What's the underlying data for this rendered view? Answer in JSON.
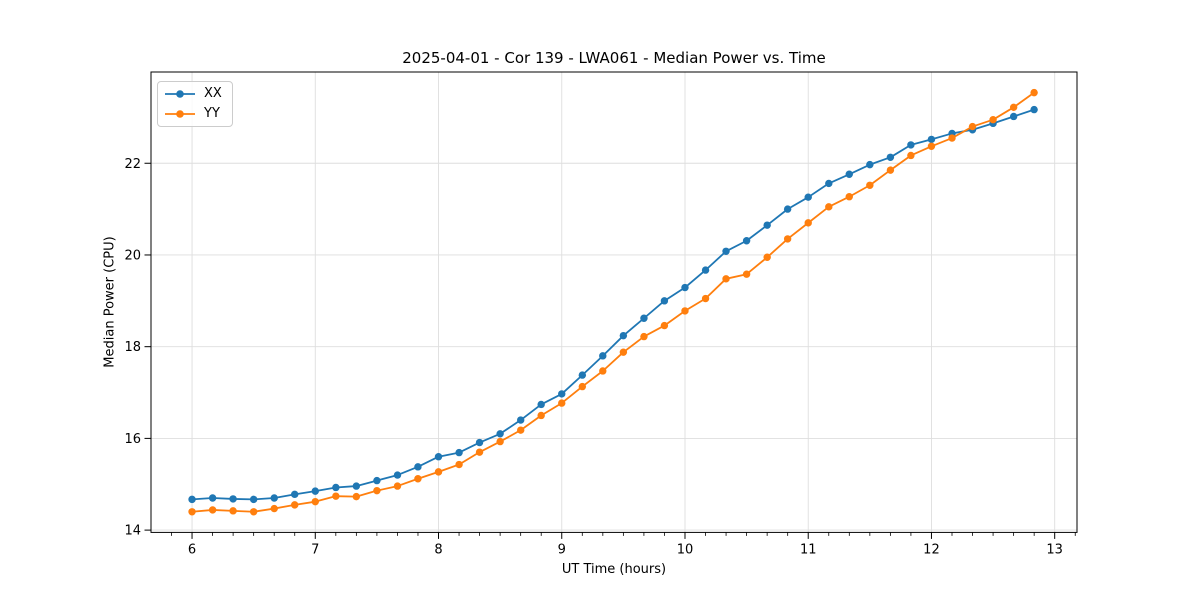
{
  "chart_data": {
    "type": "line",
    "title": "2025-04-01 - Cor 139 - LWA061 - Median Power vs. Time",
    "xlabel": "UT Time (hours)",
    "ylabel": "Median Power (CPU)",
    "x": [
      6.0,
      6.167,
      6.333,
      6.5,
      6.667,
      6.833,
      7.0,
      7.167,
      7.333,
      7.5,
      7.667,
      7.833,
      8.0,
      8.167,
      8.333,
      8.5,
      8.667,
      8.833,
      9.0,
      9.167,
      9.333,
      9.5,
      9.667,
      9.833,
      10.0,
      10.167,
      10.333,
      10.5,
      10.667,
      10.833,
      11.0,
      11.167,
      11.333,
      11.5,
      11.667,
      11.833,
      12.0,
      12.167,
      12.333,
      12.5,
      12.667,
      12.833
    ],
    "series": [
      {
        "name": "XX",
        "color": "#1f77b4",
        "marker": "circle",
        "values": [
          14.67,
          14.7,
          14.68,
          14.67,
          14.7,
          14.78,
          14.85,
          14.93,
          14.96,
          15.08,
          15.2,
          15.38,
          15.6,
          15.69,
          15.91,
          16.1,
          16.4,
          16.74,
          16.97,
          17.38,
          17.8,
          18.24,
          18.62,
          19.0,
          19.29,
          19.67,
          20.08,
          20.31,
          20.65,
          21.0,
          21.26,
          21.56,
          21.76,
          21.97,
          22.13,
          22.4,
          22.52,
          22.65,
          22.73,
          22.87,
          23.02,
          23.17
        ]
      },
      {
        "name": "YY",
        "color": "#ff7f0e",
        "marker": "circle",
        "values": [
          14.4,
          14.44,
          14.42,
          14.4,
          14.47,
          14.55,
          14.62,
          14.74,
          14.73,
          14.86,
          14.96,
          15.12,
          15.27,
          15.43,
          15.7,
          15.93,
          16.18,
          16.5,
          16.77,
          17.13,
          17.47,
          17.88,
          18.22,
          18.46,
          18.78,
          19.05,
          19.48,
          19.58,
          19.95,
          20.35,
          20.7,
          21.05,
          21.27,
          21.52,
          21.85,
          22.17,
          22.37,
          22.55,
          22.8,
          22.95,
          23.22,
          23.54
        ]
      }
    ],
    "xticks": [
      6,
      7,
      8,
      9,
      10,
      11,
      12,
      13
    ],
    "yticks": [
      14,
      16,
      18,
      20,
      22
    ],
    "xlim": [
      5.667,
      13.181
    ],
    "ylim": [
      13.95,
      23.99
    ],
    "x_minor_step": 0.166667,
    "grid": true,
    "legend_position": "upper left"
  }
}
